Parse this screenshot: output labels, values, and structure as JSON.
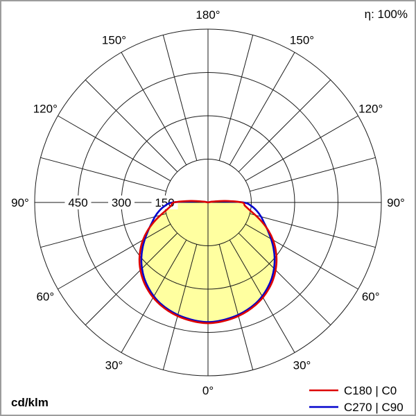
{
  "meta": {
    "efficiency_label": "η: 100%",
    "unit_label": "cd/klm"
  },
  "legend": [
    {
      "label": "C180 | C0",
      "color": "#dd0000"
    },
    {
      "label": "C270 | C90",
      "color": "#0000cc"
    }
  ],
  "chart_data": {
    "type": "line",
    "subtype": "polar-luminous-intensity",
    "unit": "cd/klm",
    "rmax": 600,
    "rings": [
      150,
      300,
      450,
      600
    ],
    "ring_labels": [
      {
        "value": 150,
        "text": "150"
      },
      {
        "value": 300,
        "text": "300"
      },
      {
        "value": 450,
        "text": "450"
      }
    ],
    "angle_step_deg": 15,
    "angle_labels": [
      {
        "deg": 0,
        "text": "0°"
      },
      {
        "deg": 30,
        "text": "30°"
      },
      {
        "deg": 60,
        "text": "60°"
      },
      {
        "deg": 90,
        "text": "90°"
      },
      {
        "deg": 120,
        "text": "120°"
      },
      {
        "deg": 150,
        "text": "150°"
      },
      {
        "deg": 180,
        "text": "180°"
      }
    ],
    "gamma_deg": [
      0,
      5,
      10,
      15,
      20,
      25,
      30,
      35,
      40,
      45,
      50,
      55,
      60,
      65,
      70,
      75,
      80,
      85,
      90,
      95,
      100,
      105
    ],
    "series": [
      {
        "name": "C180 | C0",
        "color": "#dd0000",
        "fill": "#ffffa0",
        "values": [
          418,
          416,
          412,
          407,
          400,
          391,
          380,
          366,
          350,
          331,
          310,
          286,
          260,
          231,
          200,
          170,
          145,
          128,
          118,
          60,
          18,
          0
        ]
      },
      {
        "name": "C270 | C90",
        "color": "#0000cc",
        "fill": null,
        "values": [
          414,
          412,
          408,
          403,
          396,
          387,
          375,
          360,
          343,
          323,
          301,
          277,
          252,
          228,
          207,
          190,
          172,
          152,
          123,
          45,
          12,
          0
        ]
      }
    ],
    "legend_position": "bottom-right",
    "grid": true
  },
  "layout_values": {
    "grid_color": "#1a1a1a",
    "background": "#ffffff"
  }
}
